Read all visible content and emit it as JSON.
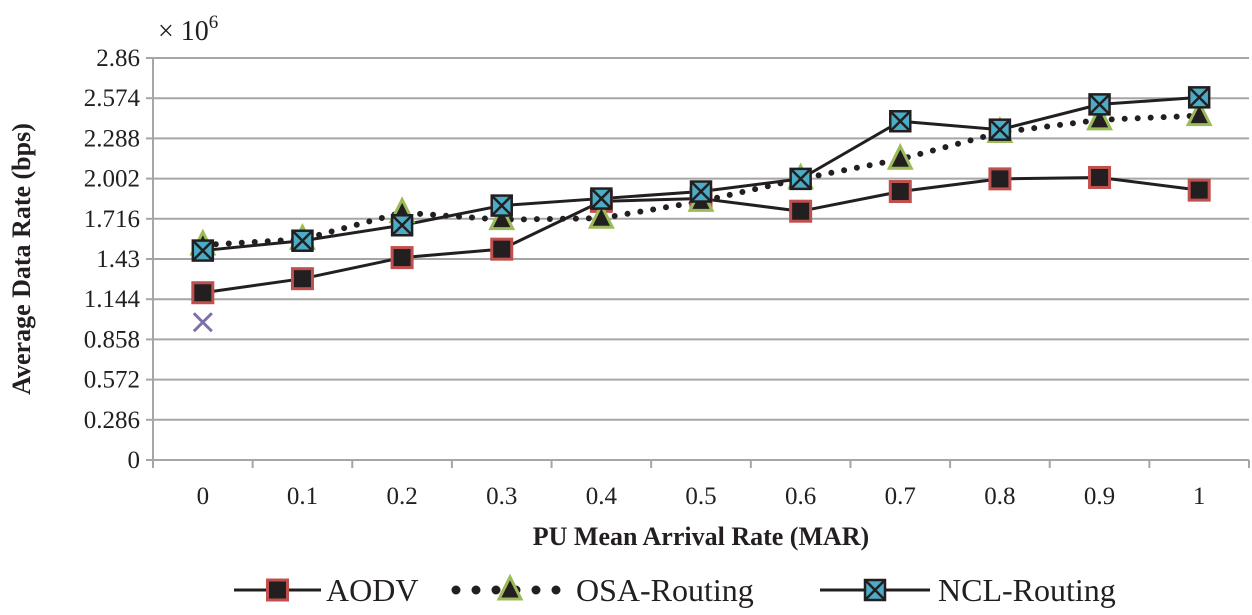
{
  "chart_data": {
    "type": "line",
    "title": "",
    "multiplier_text": "× 10",
    "multiplier_exponent": "6",
    "xlabel": "PU Mean Arrival Rate (MAR)",
    "ylabel": "Average Data Rate (bps)",
    "x": [
      0,
      0.1,
      0.2,
      0.3,
      0.4,
      0.5,
      0.6,
      0.7,
      0.8,
      0.9,
      1
    ],
    "x_tick_labels": [
      "0",
      "0.1",
      "0.2",
      "0.3",
      "0.4",
      "0.5",
      "0.6",
      "0.7",
      "0.8",
      "0.9",
      "1"
    ],
    "y_ticks": [
      0,
      0.286,
      0.572,
      0.858,
      1.144,
      1.43,
      1.716,
      2.002,
      2.288,
      2.574,
      2.86
    ],
    "y_tick_labels": [
      "0",
      "0.286",
      "0.572",
      "0.858",
      "1.144",
      "1.43",
      "1.716",
      "2.002",
      "2.288",
      "2.574",
      "2.86"
    ],
    "ylim": [
      0,
      2.86
    ],
    "grid": "horizontal",
    "legend_position": "bottom",
    "series": [
      {
        "name": "AODV",
        "line_style": "solid",
        "marker": "square",
        "marker_fill": "#231f20",
        "marker_stroke": "#c0504d",
        "values": [
          1.19,
          1.29,
          1.44,
          1.5,
          1.84,
          1.86,
          1.77,
          1.91,
          2.0,
          2.01,
          1.92
        ]
      },
      {
        "name": "OSA-Routing",
        "line_style": "dotted",
        "marker": "triangle",
        "marker_fill": "#231f20",
        "marker_stroke": "#9bbb59",
        "values": [
          1.53,
          1.57,
          1.76,
          1.71,
          1.72,
          1.84,
          2.0,
          2.14,
          2.33,
          2.42,
          2.45
        ]
      },
      {
        "name": "NCL-Routing",
        "line_style": "solid",
        "marker": "x-square",
        "marker_fill": "#4bacc6",
        "marker_stroke": "#231f20",
        "values": [
          1.49,
          1.56,
          1.67,
          1.81,
          1.86,
          1.91,
          2.0,
          2.41,
          2.35,
          2.53,
          2.58
        ]
      }
    ],
    "extra_point": {
      "x": 0,
      "value": 0.98,
      "marker": "x",
      "color": "#7f6fa8"
    }
  }
}
